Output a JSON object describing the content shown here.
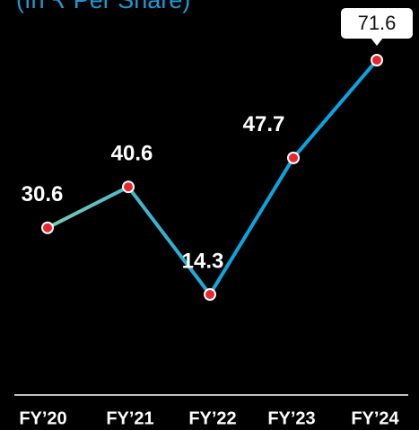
{
  "chart_data": {
    "type": "line",
    "title": "(In ₹ Per Share)",
    "categories": [
      "FY’20",
      "FY’21",
      "FY’22",
      "FY’23",
      "FY’24"
    ],
    "series": [
      {
        "values": [
          30.6,
          40.6,
          14.3,
          47.7,
          71.6
        ],
        "color": [
          "#7ccbb6",
          "#0aa5e0"
        ]
      }
    ],
    "marker_color": "#e8262d"
  }
}
